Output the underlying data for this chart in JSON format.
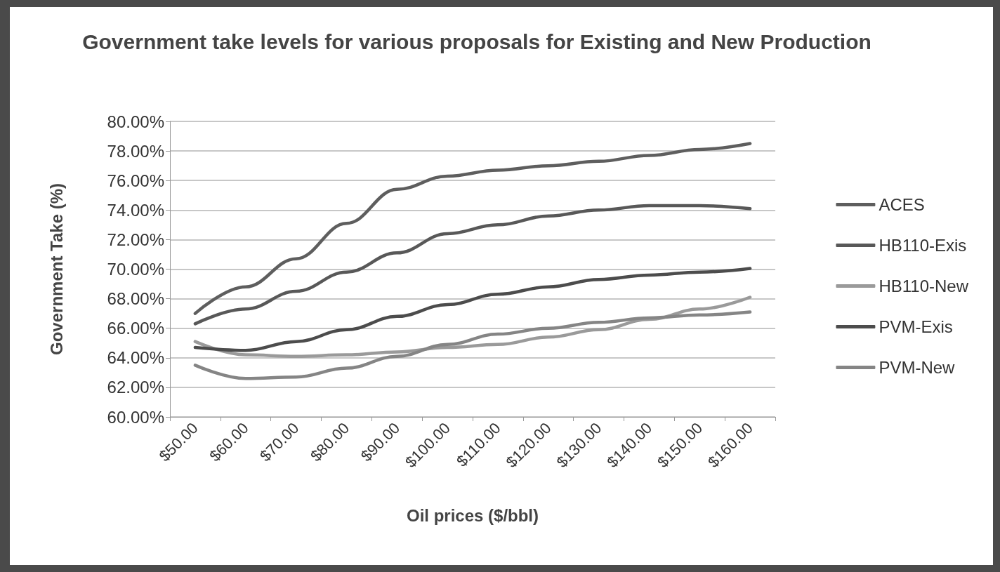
{
  "chart_data": {
    "type": "line",
    "title": "Government take levels for various proposals for Existing and New Production",
    "xlabel": "Oil prices ($/bbl)",
    "ylabel": "Government Take (%)",
    "categories": [
      "$50.00",
      "$60.00",
      "$70.00",
      "$80.00",
      "$90.00",
      "$100.00",
      "$110.00",
      "$120.00",
      "$130.00",
      "$140.00",
      "$150.00",
      "$160.00"
    ],
    "series": [
      {
        "name": "ACES",
        "color": "#5e5e5e",
        "values": [
          67.0,
          68.8,
          70.7,
          73.1,
          75.4,
          76.3,
          76.7,
          77.0,
          77.3,
          77.7,
          78.1,
          78.5
        ]
      },
      {
        "name": "HB110-Exis",
        "color": "#585858",
        "values": [
          66.3,
          67.3,
          68.5,
          69.8,
          71.1,
          72.4,
          73.0,
          73.6,
          74.0,
          74.3,
          74.3,
          74.1
        ]
      },
      {
        "name": "HB110-New",
        "color": "#9a9a9a",
        "values": [
          65.1,
          64.2,
          64.1,
          64.2,
          64.4,
          64.7,
          64.9,
          65.4,
          65.9,
          66.6,
          67.3,
          68.1
        ]
      },
      {
        "name": "PVM-Exis",
        "color": "#4c4c4c",
        "values": [
          64.7,
          64.5,
          65.1,
          65.9,
          66.8,
          67.6,
          68.3,
          68.8,
          69.3,
          69.6,
          69.8,
          70.05
        ]
      },
      {
        "name": "PVM-New",
        "color": "#858585",
        "values": [
          63.5,
          62.6,
          62.7,
          63.3,
          64.1,
          64.9,
          65.6,
          66.0,
          66.4,
          66.7,
          66.9,
          67.1
        ]
      }
    ],
    "ylim": [
      60,
      80
    ],
    "yticks": [
      {
        "value": 60,
        "label": "60.00%"
      },
      {
        "value": 62,
        "label": "62.00%"
      },
      {
        "value": 64,
        "label": "64.00%"
      },
      {
        "value": 66,
        "label": "66.00%"
      },
      {
        "value": 68,
        "label": "68.00%"
      },
      {
        "value": 70,
        "label": "70.00%"
      },
      {
        "value": 72,
        "label": "72.00%"
      },
      {
        "value": 74,
        "label": "74.00%"
      },
      {
        "value": 76,
        "label": "76.00%"
      },
      {
        "value": 78,
        "label": "78.00%"
      },
      {
        "value": 80,
        "label": "80.00%"
      }
    ],
    "grid": "y",
    "legend": "right",
    "marker": "none",
    "line_style": "solid"
  }
}
